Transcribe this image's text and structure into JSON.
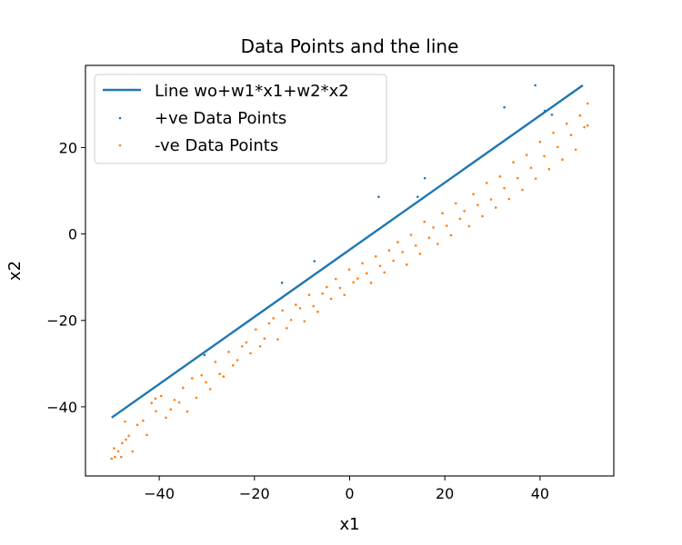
{
  "chart_data": {
    "type": "scatter",
    "title": "Data Points and the line",
    "xlabel": "x1",
    "ylabel": "x2",
    "xlim": [
      -55.5,
      55.5
    ],
    "ylim": [
      -56,
      39
    ],
    "xticks": [
      -40,
      -20,
      0,
      20,
      40
    ],
    "yticks": [
      -40,
      -20,
      0,
      20
    ],
    "grid": false,
    "legend_position": "top-left",
    "line": {
      "name": "Line wo+w1*x1+w2*x2",
      "color": "#1f77b4",
      "x": [
        -50,
        49
      ],
      "y": [
        -42.5,
        34.4
      ]
    },
    "series": [
      {
        "name": "+ve Data Points",
        "color": "#1f77b4",
        "points": [
          [
            -30.5,
            -28.0
          ],
          [
            -14.2,
            -11.3
          ],
          [
            -7.4,
            -6.3
          ],
          [
            6.1,
            8.6
          ],
          [
            14.3,
            8.6
          ],
          [
            15.8,
            12.9
          ],
          [
            32.5,
            29.3
          ],
          [
            39.0,
            34.4
          ],
          [
            41.0,
            28.5
          ],
          [
            42.5,
            27.6
          ]
        ]
      },
      {
        "name": "-ve Data Points",
        "color": "#ff7f0e",
        "points": [
          [
            -50.0,
            -52.0
          ],
          [
            -49.3,
            -51.6
          ],
          [
            -48.6,
            -50.3
          ],
          [
            -48.0,
            -51.6
          ],
          [
            -49.5,
            -49.6
          ],
          [
            -47.8,
            -48.4
          ],
          [
            -47.0,
            -47.6
          ],
          [
            -46.4,
            -46.7
          ],
          [
            -47.2,
            -43.4
          ],
          [
            -45.6,
            -50.3
          ],
          [
            -44.6,
            -44.2
          ],
          [
            -43.4,
            -43.2
          ],
          [
            -42.6,
            -46.5
          ],
          [
            -41.6,
            -39.1
          ],
          [
            -40.7,
            -41.0
          ],
          [
            -40.8,
            -38.1
          ],
          [
            -39.6,
            -37.5
          ],
          [
            -38.6,
            -42.5
          ],
          [
            -37.6,
            -40.6
          ],
          [
            -36.8,
            -38.4
          ],
          [
            -35.8,
            -39.0
          ],
          [
            -35.0,
            -35.6
          ],
          [
            -34.1,
            -41.1
          ],
          [
            -33.1,
            -33.4
          ],
          [
            -32.2,
            -37.9
          ],
          [
            -31.1,
            -32.7
          ],
          [
            -30.2,
            -34.3
          ],
          [
            -29.3,
            -35.9
          ],
          [
            -28.2,
            -29.6
          ],
          [
            -27.3,
            -32.4
          ],
          [
            -26.5,
            -33.0
          ],
          [
            -25.4,
            -27.3
          ],
          [
            -24.5,
            -30.4
          ],
          [
            -23.6,
            -29.2
          ],
          [
            -22.6,
            -26.0
          ],
          [
            -21.7,
            -25.1
          ],
          [
            -20.8,
            -27.6
          ],
          [
            -19.7,
            -22.1
          ],
          [
            -18.8,
            -26.0
          ],
          [
            -17.9,
            -24.2
          ],
          [
            -16.9,
            -20.7
          ],
          [
            -16.0,
            -19.5
          ],
          [
            -15.1,
            -24.4
          ],
          [
            -14.1,
            -17.7
          ],
          [
            -13.2,
            -21.8
          ],
          [
            -12.3,
            -19.9
          ],
          [
            -11.3,
            -16.4
          ],
          [
            -10.4,
            -17.2
          ],
          [
            -9.5,
            -20.2
          ],
          [
            -8.5,
            -14.1
          ],
          [
            -7.6,
            -16.7
          ],
          [
            -6.7,
            -18.0
          ],
          [
            -5.7,
            -13.8
          ],
          [
            -4.8,
            -12.3
          ],
          [
            -3.9,
            -15.0
          ],
          [
            -2.9,
            -10.4
          ],
          [
            -2.0,
            -12.5
          ],
          [
            -1.1,
            -14.1
          ],
          [
            -0.1,
            -8.2
          ],
          [
            0.8,
            -11.2
          ],
          [
            1.7,
            -10.3
          ],
          [
            2.7,
            -6.8
          ],
          [
            3.6,
            -9.1
          ],
          [
            4.5,
            -11.3
          ],
          [
            5.5,
            -5.2
          ],
          [
            6.4,
            -7.4
          ],
          [
            7.3,
            -8.9
          ],
          [
            8.3,
            -3.8
          ],
          [
            9.2,
            -6.2
          ],
          [
            10.1,
            -1.9
          ],
          [
            11.1,
            -4.2
          ],
          [
            12.0,
            -7.1
          ],
          [
            12.9,
            -0.2
          ],
          [
            13.9,
            -2.7
          ],
          [
            14.8,
            -4.6
          ],
          [
            15.7,
            2.8
          ],
          [
            16.7,
            -0.9
          ],
          [
            17.6,
            1.5
          ],
          [
            18.5,
            -2.3
          ],
          [
            19.5,
            4.8
          ],
          [
            20.4,
            1.9
          ],
          [
            21.3,
            -0.3
          ],
          [
            22.3,
            7.1
          ],
          [
            23.2,
            3.5
          ],
          [
            24.1,
            5.3
          ],
          [
            25.1,
            1.8
          ],
          [
            26.0,
            9.2
          ],
          [
            26.9,
            6.7
          ],
          [
            27.9,
            4.1
          ],
          [
            28.8,
            11.8
          ],
          [
            29.7,
            8.0
          ],
          [
            30.7,
            6.1
          ],
          [
            31.6,
            13.3
          ],
          [
            32.5,
            10.6
          ],
          [
            33.5,
            8.1
          ],
          [
            34.4,
            16.6
          ],
          [
            35.3,
            12.9
          ],
          [
            36.3,
            10.2
          ],
          [
            37.2,
            18.3
          ],
          [
            38.1,
            15.3
          ],
          [
            39.1,
            12.8
          ],
          [
            40.0,
            21.3
          ],
          [
            40.9,
            18.0
          ],
          [
            41.9,
            15.0
          ],
          [
            42.8,
            23.4
          ],
          [
            43.7,
            20.1
          ],
          [
            44.7,
            17.2
          ],
          [
            45.6,
            25.5
          ],
          [
            46.5,
            22.9
          ],
          [
            47.5,
            19.5
          ],
          [
            48.4,
            27.4
          ],
          [
            49.3,
            24.7
          ],
          [
            50.0,
            30.2
          ],
          [
            50.0,
            25.1
          ]
        ]
      }
    ]
  }
}
